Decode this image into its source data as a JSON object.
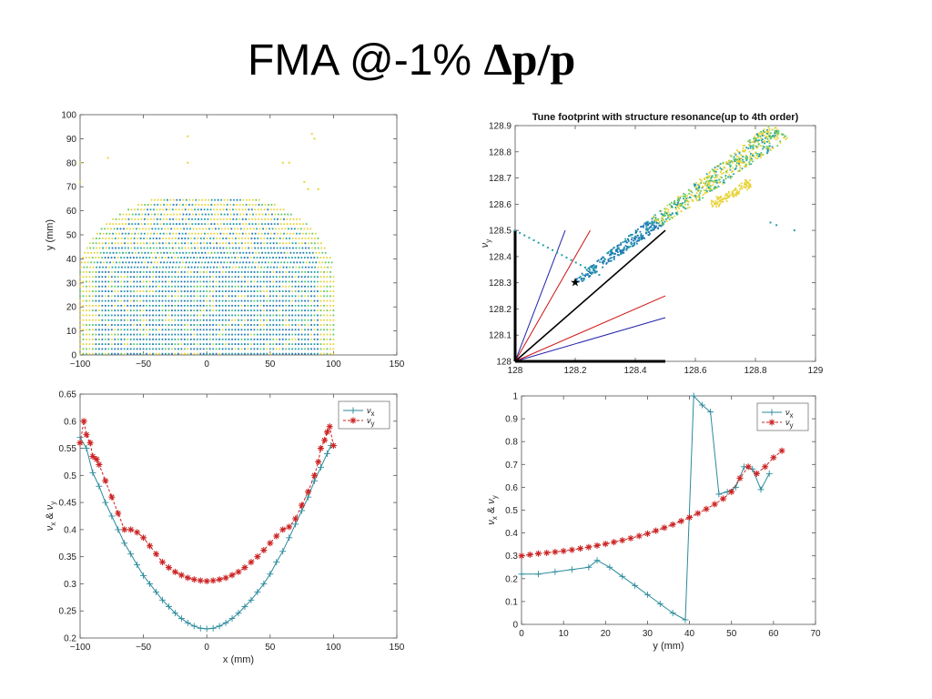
{
  "title": {
    "prefix": "FMA @-1% ",
    "symbol": "Δp/p"
  },
  "chart_data": [
    {
      "type": "scatter",
      "title": "",
      "xlabel": "",
      "ylabel": "y (mm)",
      "xlim": [
        -100,
        150
      ],
      "ylim": [
        0,
        100
      ],
      "xticks": [
        "−100",
        "−50",
        "0",
        "50",
        "100",
        "150"
      ],
      "yticks": [
        "0",
        "10",
        "20",
        "30",
        "40",
        "50",
        "60",
        "70",
        "80",
        "90",
        "100"
      ],
      "grid": false,
      "colors": [
        "#1f77b4",
        "#20a0a8",
        "#5ec962",
        "#e8d33a"
      ],
      "stray_points": [
        [
          -100,
          80
        ],
        [
          -100,
          72
        ],
        [
          -78,
          82
        ],
        [
          -15,
          91
        ],
        [
          -15,
          80
        ],
        [
          60,
          80
        ],
        [
          65,
          80
        ],
        [
          83,
          92
        ],
        [
          85,
          90
        ],
        [
          77,
          72
        ],
        [
          80,
          69
        ],
        [
          88,
          69
        ]
      ]
    },
    {
      "type": "scatter",
      "title": "Tune footprint with structure resonance(up to 4th order)",
      "xlabel": "",
      "ylabel": "ν_y",
      "xlim": [
        128,
        129
      ],
      "ylim": [
        128,
        128.9
      ],
      "xticks": [
        "128",
        "128.2",
        "128.4",
        "128.6",
        "128.8",
        "129"
      ],
      "yticks": [
        "128",
        "128.1",
        "128.2",
        "128.3",
        "128.4",
        "128.5",
        "128.6",
        "128.7",
        "128.8",
        "128.9"
      ],
      "grid": false,
      "star_point": [
        128.2,
        128.3
      ],
      "resonance_lines": [
        {
          "color": "#000000",
          "x": [
            128,
            128.5
          ],
          "y": [
            128,
            128.5
          ]
        },
        {
          "color": "#cc1111",
          "x": [
            128,
            128.25
          ],
          "y": [
            128,
            128.5
          ]
        },
        {
          "color": "#cc1111",
          "x": [
            128,
            128.5
          ],
          "y": [
            128,
            128.25
          ]
        },
        {
          "color": "#2222aa",
          "x": [
            128,
            128.1667
          ],
          "y": [
            128,
            128.5
          ]
        },
        {
          "color": "#2222aa",
          "x": [
            128,
            128.5
          ],
          "y": [
            128,
            128.1667
          ]
        }
      ],
      "axis_segments": [
        {
          "x": [
            128,
            128
          ],
          "y": [
            128,
            128.5
          ]
        },
        {
          "x": [
            128,
            128.5
          ],
          "y": [
            128,
            128
          ]
        }
      ],
      "footprint": {
        "from": [
          128.2,
          128.3
        ],
        "to": [
          128.88,
          128.88
        ]
      },
      "side_branch": {
        "from": [
          128.66,
          128.6
        ],
        "to": [
          128.78,
          128.68
        ]
      },
      "dotted_line": {
        "x": [
          128,
          128.28
        ],
        "y": [
          128.5,
          128.33
        ]
      },
      "stray_points": [
        [
          128.93,
          128.5
        ],
        [
          128.85,
          128.53
        ],
        [
          128.87,
          128.52
        ]
      ]
    },
    {
      "type": "line",
      "title": "",
      "xlabel": "x (mm)",
      "ylabel": "ν_x & ν_y",
      "xlim": [
        -100,
        150
      ],
      "ylim": [
        0.2,
        0.65
      ],
      "xticks": [
        "−100",
        "−50",
        "0",
        "50",
        "100",
        "150"
      ],
      "yticks": [
        "0.2",
        "0.25",
        "0.3",
        "0.35",
        "0.4",
        "0.45",
        "0.5",
        "0.55",
        "0.6",
        "0.65"
      ],
      "grid": false,
      "legend": "top-right",
      "series": [
        {
          "name": "ν_x",
          "color": "#2a8a9a",
          "marker": "+",
          "x": [
            -100,
            -95,
            -90,
            -85,
            -80,
            -75,
            -70,
            -65,
            -60,
            -55,
            -50,
            -45,
            -40,
            -35,
            -30,
            -25,
            -20,
            -15,
            -10,
            -5,
            0,
            5,
            10,
            15,
            20,
            25,
            30,
            35,
            40,
            45,
            50,
            55,
            60,
            65,
            70,
            75,
            80,
            85,
            90,
            95,
            98
          ],
          "y": [
            0.57,
            0.55,
            0.505,
            0.48,
            0.45,
            0.425,
            0.4,
            0.375,
            0.355,
            0.335,
            0.315,
            0.3,
            0.285,
            0.27,
            0.258,
            0.246,
            0.236,
            0.228,
            0.222,
            0.218,
            0.217,
            0.218,
            0.222,
            0.228,
            0.236,
            0.246,
            0.258,
            0.27,
            0.285,
            0.3,
            0.318,
            0.34,
            0.36,
            0.385,
            0.41,
            0.435,
            0.46,
            0.49,
            0.515,
            0.54,
            0.555
          ]
        },
        {
          "name": "ν_y",
          "color": "#cc2222",
          "marker": "*",
          "x": [
            -100,
            -97,
            -95,
            -92,
            -90,
            -87,
            -85,
            -80,
            -75,
            -70,
            -65,
            -60,
            -55,
            -50,
            -45,
            -40,
            -35,
            -30,
            -25,
            -20,
            -15,
            -10,
            -5,
            0,
            5,
            10,
            15,
            20,
            25,
            30,
            35,
            40,
            45,
            50,
            55,
            60,
            65,
            70,
            75,
            80,
            85,
            88,
            90,
            93,
            95,
            97,
            100
          ],
          "y": [
            0.56,
            0.6,
            0.575,
            0.56,
            0.535,
            0.53,
            0.52,
            0.49,
            0.46,
            0.43,
            0.4,
            0.4,
            0.395,
            0.385,
            0.37,
            0.355,
            0.34,
            0.33,
            0.322,
            0.316,
            0.311,
            0.308,
            0.306,
            0.305,
            0.306,
            0.308,
            0.311,
            0.316,
            0.322,
            0.33,
            0.34,
            0.35,
            0.362,
            0.375,
            0.388,
            0.4,
            0.405,
            0.42,
            0.445,
            0.47,
            0.5,
            0.525,
            0.55,
            0.565,
            0.58,
            0.59,
            0.555
          ]
        }
      ]
    },
    {
      "type": "line",
      "title": "",
      "xlabel": "y (mm)",
      "ylabel": "ν_x & ν_y",
      "xlim": [
        0,
        70
      ],
      "ylim": [
        0,
        1
      ],
      "xticks": [
        "0",
        "10",
        "20",
        "30",
        "40",
        "50",
        "60",
        "70"
      ],
      "yticks": [
        "0",
        "0.1",
        "0.2",
        "0.3",
        "0.4",
        "0.5",
        "0.6",
        "0.7",
        "0.8",
        "0.9",
        "1"
      ],
      "grid": false,
      "legend": "top-right",
      "series": [
        {
          "name": "ν_x",
          "color": "#2a8a9a",
          "marker": "+",
          "x": [
            0,
            4,
            8,
            12,
            16,
            18,
            21,
            24,
            27,
            30,
            33,
            36,
            39,
            41,
            43,
            45,
            47,
            49,
            51,
            53,
            55,
            57,
            59
          ],
          "y": [
            0.22,
            0.22,
            0.23,
            0.24,
            0.25,
            0.28,
            0.25,
            0.21,
            0.17,
            0.13,
            0.09,
            0.05,
            0.02,
            1.0,
            0.96,
            0.93,
            0.57,
            0.58,
            0.6,
            0.69,
            0.68,
            0.59,
            0.66
          ]
        },
        {
          "name": "ν_y",
          "color": "#cc2222",
          "marker": "*",
          "x": [
            0,
            2,
            4,
            6,
            8,
            10,
            12,
            14,
            16,
            18,
            20,
            22,
            24,
            26,
            28,
            30,
            32,
            34,
            36,
            38,
            40,
            42,
            44,
            46,
            48,
            50,
            52,
            54,
            56,
            58,
            60,
            62
          ],
          "y": [
            0.3,
            0.305,
            0.31,
            0.313,
            0.317,
            0.321,
            0.326,
            0.332,
            0.338,
            0.345,
            0.352,
            0.36,
            0.368,
            0.377,
            0.387,
            0.397,
            0.41,
            0.423,
            0.437,
            0.452,
            0.468,
            0.486,
            0.505,
            0.526,
            0.55,
            0.58,
            0.64,
            0.69,
            0.66,
            0.69,
            0.73,
            0.76
          ]
        }
      ]
    }
  ]
}
